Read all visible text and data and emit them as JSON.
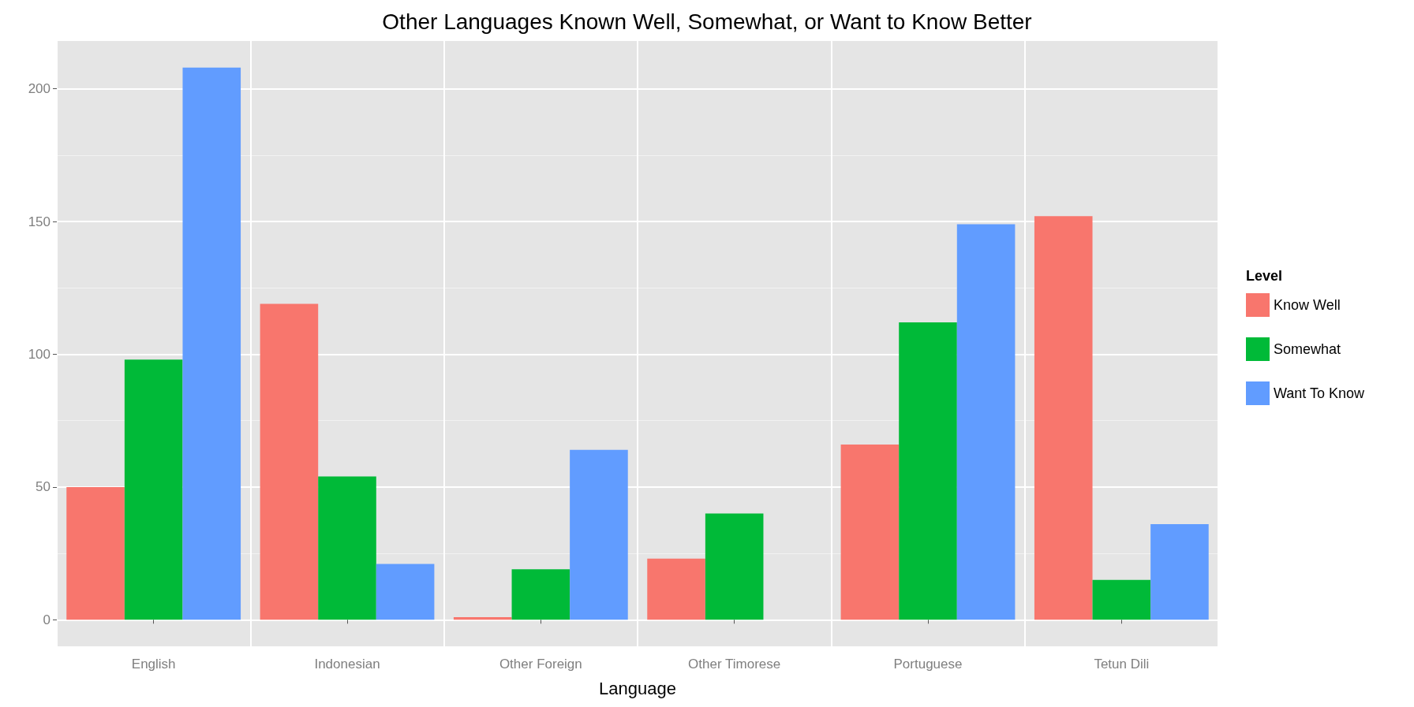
{
  "chart_data": {
    "type": "bar",
    "title": "Other Languages Known Well, Somewhat, or Want to Know Better",
    "xlabel": "Language",
    "legend_title": "Level",
    "categories": [
      "English",
      "Indonesian",
      "Other Foreign",
      "Other Timorese",
      "Portuguese",
      "Tetun Dili"
    ],
    "series": [
      {
        "name": "Know Well",
        "color": "#f8766d",
        "values": [
          50,
          119,
          1,
          23,
          66,
          152
        ]
      },
      {
        "name": "Somewhat",
        "color": "#00ba38",
        "values": [
          98,
          54,
          19,
          40,
          112,
          15
        ]
      },
      {
        "name": "Want To Know",
        "color": "#619cff",
        "values": [
          208,
          21,
          64,
          null,
          149,
          36
        ]
      }
    ],
    "ylim": [
      -10,
      218
    ],
    "yticks": [
      0,
      50,
      100,
      150,
      200
    ],
    "grid": true,
    "legend": "right"
  }
}
